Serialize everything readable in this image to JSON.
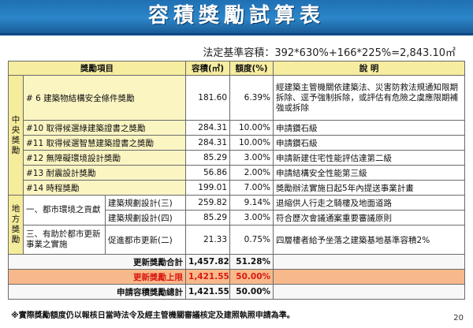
{
  "title": "容積獎勵試算表",
  "formula": "法定基準容積：392*630%+166*225%=2,843.10㎡",
  "headers": {
    "item": "獎勵項目",
    "area": "容積(㎡)",
    "ratio": "額度(%)",
    "note": "說  明"
  },
  "groups": {
    "central": "中央獎勵",
    "local": "地方獎勵"
  },
  "central_rows": [
    {
      "item": "# 6  建築物結構安全條件獎勵",
      "area": "181.60",
      "ratio": "6.39%",
      "note": "經建築主管機關依建築法、災害防救法規通知限期拆除、逕予強制拆除，或評估有危險之虞應限期補強或拆除"
    },
    {
      "item": "#10 取得候選綠建築證書之獎勵",
      "area": "284.31",
      "ratio": "10.00%",
      "note": "申請鑽石級"
    },
    {
      "item": "#11 取得候選智慧建築證書之獎勵",
      "area": "284.31",
      "ratio": "10.00%",
      "note": "申請鑽石級"
    },
    {
      "item": "#12 無障礙環境設計獎勵",
      "area": "85.29",
      "ratio": "3.00%",
      "note": "申請新建住宅性能評估達第二級"
    },
    {
      "item": "#13 耐震設計獎勵",
      "area": "56.86",
      "ratio": "2.00%",
      "note": "申請結構安全性能第三級"
    },
    {
      "item": "#14 時程獎勵",
      "area": "199.01",
      "ratio": "7.00%",
      "note": "獎勵辦法實施日起5年內提送事業計畫"
    }
  ],
  "local_groups": [
    {
      "category": "一、都市環境之貢獻",
      "rows": [
        {
          "item": "建築規劃設計(三)",
          "area": "259.82",
          "ratio": "9.14%",
          "note": "退縮供人行走之騎樓及地面道路"
        },
        {
          "item": "建築規劃設計(四)",
          "area": "85.29",
          "ratio": "3.00%",
          "note": "符合歷次會議通案重要審議原則"
        }
      ]
    },
    {
      "category": "三、有助於都市更新事業之實施",
      "rows": [
        {
          "item": "促進都市更新(二)",
          "area": "21.33",
          "ratio": "0.75%",
          "note": "四層樓者給予坐落之建築基地基準容積2%"
        }
      ]
    }
  ],
  "summary": {
    "total_label": "更新獎勵合計",
    "total_area": "1,457.82",
    "total_ratio": "51.28%",
    "cap_label": "更新獎勵上限",
    "cap_area": "1,421.55",
    "cap_ratio": "50.00%",
    "apply_label": "申請容積獎勵總計",
    "apply_area": "1,421.55",
    "apply_ratio": "50.00%"
  },
  "footnote": "※實際獎勵額度仍以報核日當時法令及經主管機關審議核定及建照執照申請為準。",
  "page_number": "20",
  "colors": {
    "title_bar": "#2b86c9",
    "highlight_row": "#f7b98c",
    "cap_text": "#d8190f",
    "lemon": "#fbf5c2"
  }
}
